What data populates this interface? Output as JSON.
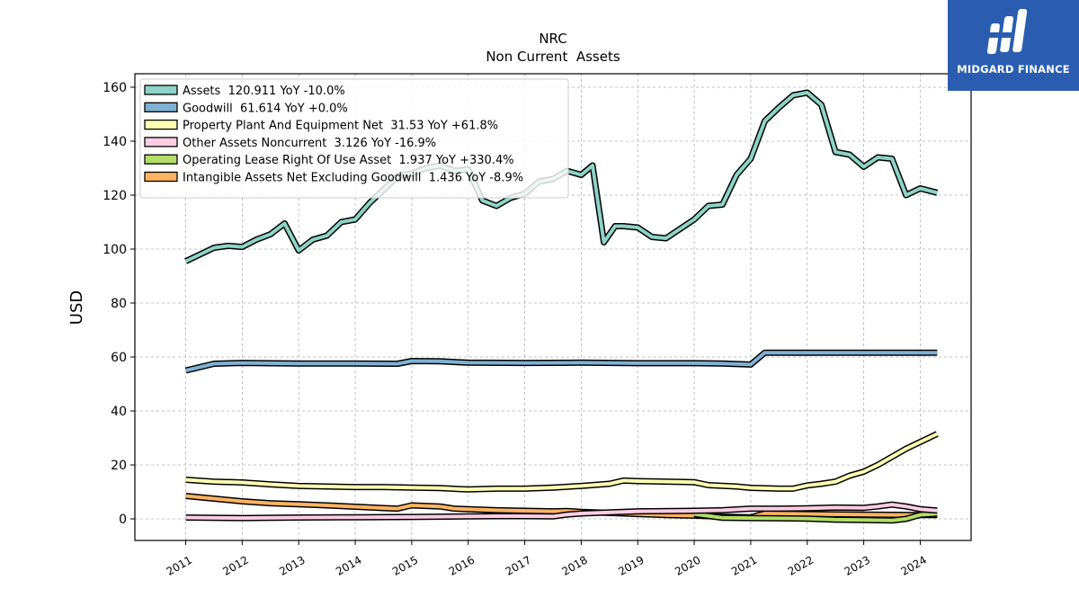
{
  "brand": {
    "name": "MIDGARD FINANCE",
    "logo_color": "#2a5db0"
  },
  "chart_data": {
    "type": "line",
    "title": "NRC",
    "subtitle": "Non Current  Assets",
    "ylabel": "USD",
    "xlabel": "",
    "ylim": [
      -8,
      165
    ],
    "xlim": [
      2010.1,
      2024.9
    ],
    "yticks": [
      0,
      20,
      40,
      60,
      80,
      100,
      120,
      140,
      160
    ],
    "xticks": [
      "2011",
      "2012",
      "2013",
      "2014",
      "2015",
      "2016",
      "2017",
      "2018",
      "2019",
      "2020",
      "2021",
      "2022",
      "2023",
      "2024"
    ],
    "grid": true,
    "legend_position": "top-left",
    "series": [
      {
        "name": "Assets  120.911 YoY -10.0%",
        "color": "#8dd3c7",
        "points": [
          [
            2011.0,
            95.5
          ],
          [
            2011.25,
            98
          ],
          [
            2011.5,
            100.5
          ],
          [
            2011.75,
            101.2
          ],
          [
            2012.0,
            100.8
          ],
          [
            2012.25,
            103.5
          ],
          [
            2012.5,
            105.5
          ],
          [
            2012.75,
            109.5
          ],
          [
            2013.0,
            99.5
          ],
          [
            2013.25,
            103.5
          ],
          [
            2013.5,
            105
          ],
          [
            2013.75,
            110
          ],
          [
            2014.0,
            111
          ],
          [
            2014.25,
            117
          ],
          [
            2014.5,
            122
          ],
          [
            2014.75,
            127
          ],
          [
            2015.0,
            128
          ],
          [
            2015.25,
            130
          ],
          [
            2015.5,
            131
          ],
          [
            2015.75,
            129
          ],
          [
            2016.0,
            129.5
          ],
          [
            2016.25,
            118
          ],
          [
            2016.5,
            116
          ],
          [
            2016.75,
            119
          ],
          [
            2017.0,
            120.5
          ],
          [
            2017.25,
            125
          ],
          [
            2017.5,
            126
          ],
          [
            2017.75,
            129
          ],
          [
            2018.0,
            127.5
          ],
          [
            2018.2,
            131
          ],
          [
            2018.4,
            102.5
          ],
          [
            2018.6,
            108.5
          ],
          [
            2018.75,
            108.5
          ],
          [
            2019.0,
            108
          ],
          [
            2019.25,
            104.5
          ],
          [
            2019.5,
            104
          ],
          [
            2019.75,
            107.5
          ],
          [
            2020.0,
            111
          ],
          [
            2020.25,
            116
          ],
          [
            2020.5,
            116.5
          ],
          [
            2020.75,
            127.5
          ],
          [
            2021.0,
            133.5
          ],
          [
            2021.25,
            147.5
          ],
          [
            2021.5,
            152.5
          ],
          [
            2021.75,
            157
          ],
          [
            2022.0,
            158
          ],
          [
            2022.25,
            153.5
          ],
          [
            2022.5,
            136
          ],
          [
            2022.75,
            135
          ],
          [
            2023.0,
            130.5
          ],
          [
            2023.25,
            134
          ],
          [
            2023.5,
            133.5
          ],
          [
            2023.75,
            120
          ],
          [
            2024.0,
            122.5
          ],
          [
            2024.3,
            120.9
          ]
        ]
      },
      {
        "name": "Goodwill  61.614 YoY +0.0%",
        "color": "#80b1d3",
        "points": [
          [
            2011.0,
            55
          ],
          [
            2011.5,
            57.5
          ],
          [
            2012.0,
            57.8
          ],
          [
            2013.0,
            57.6
          ],
          [
            2014.0,
            57.6
          ],
          [
            2014.75,
            57.5
          ],
          [
            2015.0,
            58.5
          ],
          [
            2015.5,
            58.4
          ],
          [
            2016.0,
            57.9
          ],
          [
            2017.0,
            57.8
          ],
          [
            2018.0,
            57.9
          ],
          [
            2019.0,
            57.7
          ],
          [
            2020.0,
            57.7
          ],
          [
            2020.5,
            57.6
          ],
          [
            2021.0,
            57.2
          ],
          [
            2021.25,
            61.6
          ],
          [
            2022.0,
            61.6
          ],
          [
            2023.0,
            61.6
          ],
          [
            2024.3,
            61.6
          ]
        ]
      },
      {
        "name": "Property Plant And Equipment Net  31.53 YoY +61.8%",
        "color": "#ffffb3",
        "points": [
          [
            2011.0,
            14.5
          ],
          [
            2011.5,
            13.8
          ],
          [
            2012.0,
            13.5
          ],
          [
            2012.5,
            12.8
          ],
          [
            2013.0,
            12.2
          ],
          [
            2014.0,
            11.8
          ],
          [
            2014.5,
            11.8
          ],
          [
            2015.0,
            11.6
          ],
          [
            2015.5,
            11.4
          ],
          [
            2016.0,
            10.9
          ],
          [
            2016.5,
            11.2
          ],
          [
            2017.0,
            11.2
          ],
          [
            2017.5,
            11.6
          ],
          [
            2018.0,
            12.2
          ],
          [
            2018.5,
            13
          ],
          [
            2018.75,
            14.2
          ],
          [
            2019.0,
            14
          ],
          [
            2020.0,
            13.6
          ],
          [
            2020.25,
            12.5
          ],
          [
            2020.75,
            12
          ],
          [
            2021.0,
            11.5
          ],
          [
            2021.5,
            11.2
          ],
          [
            2021.75,
            11.2
          ],
          [
            2022.0,
            12.4
          ],
          [
            2022.25,
            13
          ],
          [
            2022.5,
            13.8
          ],
          [
            2022.75,
            16
          ],
          [
            2023.0,
            17.5
          ],
          [
            2023.25,
            20
          ],
          [
            2023.5,
            23
          ],
          [
            2023.75,
            26
          ],
          [
            2024.0,
            28.5
          ],
          [
            2024.3,
            31.5
          ]
        ]
      },
      {
        "name": "Other Assets Noncurrent  3.126 YoY -16.9%",
        "color": "#fccde5",
        "points": [
          [
            2011.0,
            0.5
          ],
          [
            2012.0,
            0.3
          ],
          [
            2013.0,
            0.5
          ],
          [
            2014.0,
            0.6
          ],
          [
            2015.0,
            0.7
          ],
          [
            2016.0,
            0.9
          ],
          [
            2016.5,
            1
          ],
          [
            2017.0,
            1
          ],
          [
            2017.5,
            0.9
          ],
          [
            2017.75,
            1.6
          ],
          [
            2018.0,
            2
          ],
          [
            2019.0,
            2.8
          ],
          [
            2020.0,
            3
          ],
          [
            2020.5,
            3.2
          ],
          [
            2021.0,
            3.8
          ],
          [
            2021.5,
            3.8
          ],
          [
            2022.0,
            3.9
          ],
          [
            2022.5,
            4.2
          ],
          [
            2023.0,
            4.1
          ],
          [
            2023.25,
            4.6
          ],
          [
            2023.5,
            5.3
          ],
          [
            2023.75,
            4.6
          ],
          [
            2024.0,
            3.6
          ],
          [
            2024.3,
            3.1
          ]
        ]
      },
      {
        "name": "Operating Lease Right Of Use Asset  1.937 YoY +330.4%",
        "color": "#b3de69",
        "points": [
          [
            2020.0,
            1.8
          ],
          [
            2020.5,
            0.4
          ],
          [
            2021.0,
            0.3
          ],
          [
            2021.5,
            0.2
          ],
          [
            2022.0,
            0.1
          ],
          [
            2022.5,
            -0.3
          ],
          [
            2023.0,
            -0.4
          ],
          [
            2023.5,
            -0.6
          ],
          [
            2023.75,
            0
          ],
          [
            2024.0,
            1.5
          ],
          [
            2024.3,
            1.9
          ]
        ]
      },
      {
        "name": "Intangible Assets Net Excluding Goodwill  1.436 YoY -8.9%",
        "color": "#fdb462",
        "points": [
          [
            2011.0,
            8.5
          ],
          [
            2011.5,
            7.5
          ],
          [
            2012.0,
            6.5
          ],
          [
            2012.5,
            5.8
          ],
          [
            2013.0,
            5.4
          ],
          [
            2013.5,
            5
          ],
          [
            2014.0,
            4.5
          ],
          [
            2014.5,
            4
          ],
          [
            2014.75,
            3.8
          ],
          [
            2015.0,
            5
          ],
          [
            2015.5,
            4.6
          ],
          [
            2015.75,
            3.8
          ],
          [
            2016.0,
            3.6
          ],
          [
            2016.5,
            3.2
          ],
          [
            2017.0,
            3
          ],
          [
            2017.5,
            2.8
          ],
          [
            2017.75,
            2.9
          ],
          [
            2018.0,
            2.6
          ],
          [
            2018.5,
            2.2
          ],
          [
            2019.0,
            1.8
          ],
          [
            2019.5,
            1.4
          ],
          [
            2020.0,
            1.2
          ],
          [
            2020.5,
            0.8
          ],
          [
            2021.0,
            0.6
          ],
          [
            2021.25,
            2
          ],
          [
            2022.0,
            1.8
          ],
          [
            2023.0,
            1.6
          ],
          [
            2023.5,
            1.5
          ],
          [
            2024.0,
            1.4
          ],
          [
            2024.3,
            1.4
          ]
        ]
      }
    ]
  }
}
